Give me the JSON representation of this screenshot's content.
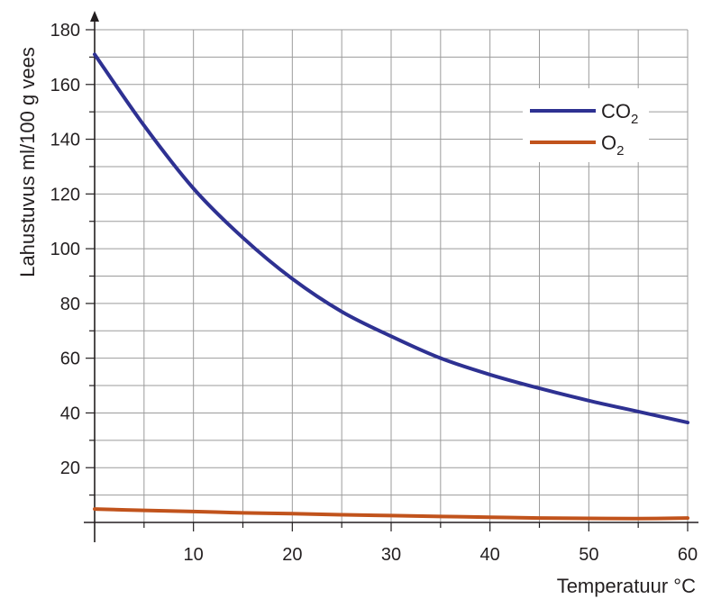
{
  "chart_data": {
    "type": "line",
    "title": "",
    "xlabel": "Temperatuur °C",
    "ylabel": "Lahustuvus ml/100 g vees",
    "xlim": [
      0,
      60
    ],
    "ylim": [
      0,
      180
    ],
    "xticks": [
      "10",
      "20",
      "30",
      "40",
      "50",
      "60"
    ],
    "yticks": [
      "20",
      "40",
      "60",
      "80",
      "100",
      "120",
      "140",
      "160",
      "180"
    ],
    "grid": true,
    "legend_position": "top-right",
    "series": [
      {
        "name": "CO2",
        "label_main": "CO",
        "label_sub": "2",
        "color": "#2e3192",
        "x": [
          0,
          5,
          10,
          15,
          20,
          25,
          30,
          35,
          40,
          45,
          50,
          55,
          60
        ],
        "y": [
          171,
          145,
          122,
          104,
          89,
          77,
          68,
          60,
          54,
          49,
          44.5,
          40.5,
          36.5
        ]
      },
      {
        "name": "O2",
        "label_main": "O",
        "label_sub": "2",
        "color": "#c1531c",
        "x": [
          0,
          5,
          10,
          15,
          20,
          25,
          30,
          35,
          40,
          45,
          50,
          55,
          60
        ],
        "y": [
          4.9,
          4.4,
          4.0,
          3.5,
          3.2,
          2.8,
          2.5,
          2.2,
          1.9,
          1.6,
          1.5,
          1.4,
          1.6
        ]
      }
    ]
  }
}
